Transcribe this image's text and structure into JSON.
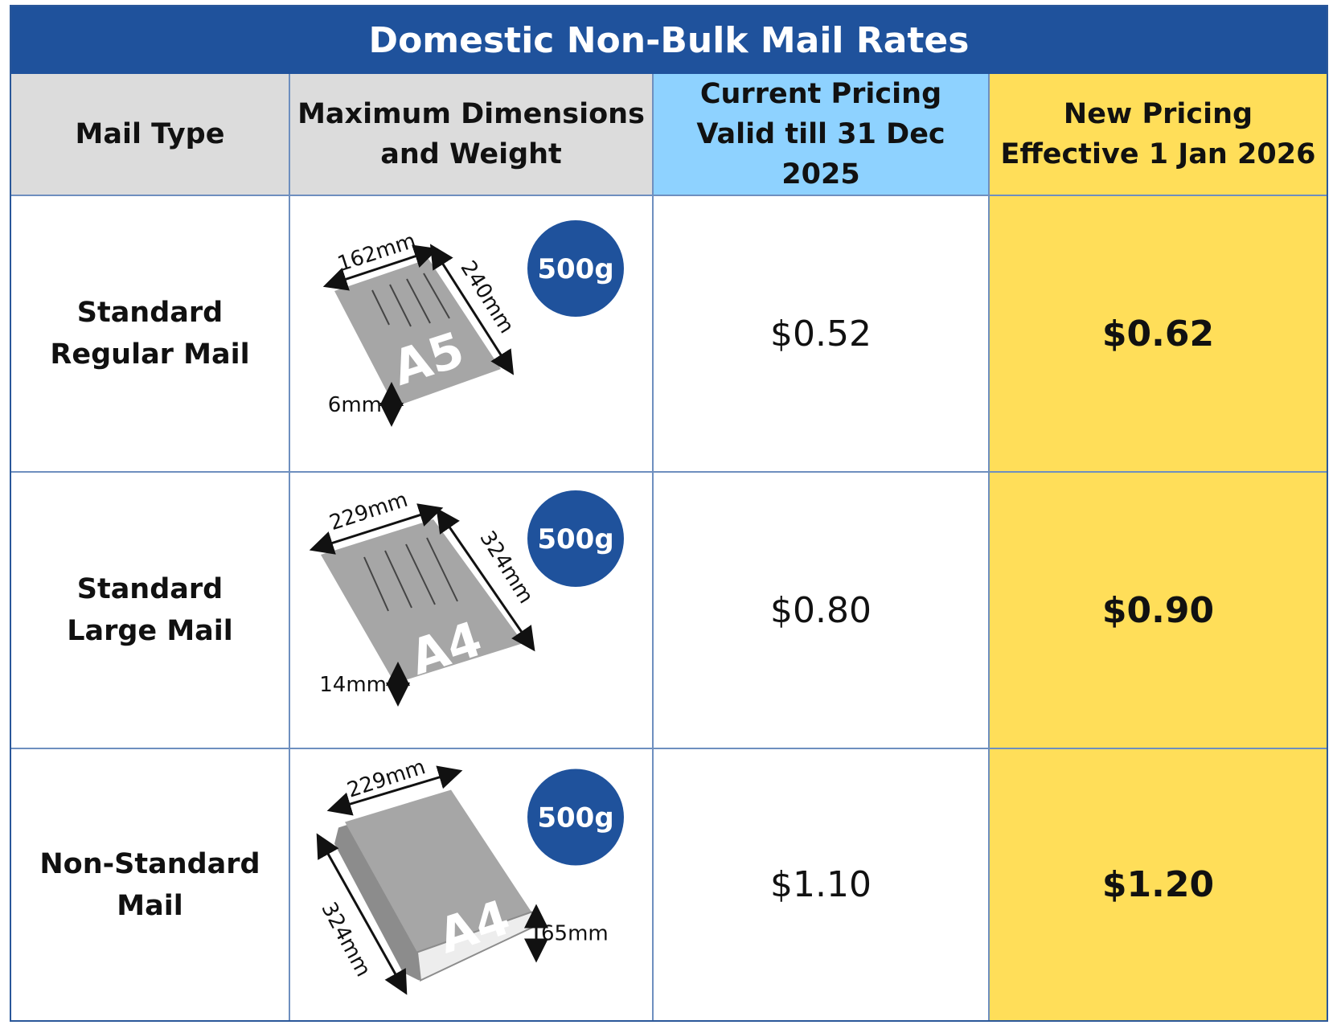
{
  "title": "Domestic Non-Bulk Mail Rates",
  "headers": {
    "mail_type": "Mail Type",
    "dimensions_l1": "Maximum Dimensions",
    "dimensions_l2": "and Weight",
    "current_l1": "Current Pricing",
    "current_l2": "Valid till 31 Dec 2025",
    "new_l1": "New Pricing",
    "new_l2": "Effective 1 Jan 2026"
  },
  "rows": [
    {
      "type_l1": "Standard",
      "type_l2": "Regular Mail",
      "size": "A5",
      "width": "162mm",
      "height": "240mm",
      "thickness": "6mm",
      "weight": "500g",
      "current_price": "$0.52",
      "new_price": "$0.62"
    },
    {
      "type_l1": "Standard",
      "type_l2": "Large Mail",
      "size": "A4",
      "width": "229mm",
      "height": "324mm",
      "thickness": "14mm",
      "weight": "500g",
      "current_price": "$0.80",
      "new_price": "$0.90"
    },
    {
      "type_l1": "Non-Standard",
      "type_l2": "Mail",
      "size": "A4",
      "width": "229mm",
      "height": "324mm",
      "thickness": "65mm",
      "weight": "500g",
      "current_price": "$1.10",
      "new_price": "$1.20"
    }
  ],
  "colors": {
    "title_bg": "#1f529c",
    "header_gray": "#dcdcdc",
    "header_blue": "#8ed2ff",
    "new_pricing_yellow": "#ffde59",
    "badge_blue": "#1f529c",
    "envelope_gray": "#a6a6a6"
  }
}
